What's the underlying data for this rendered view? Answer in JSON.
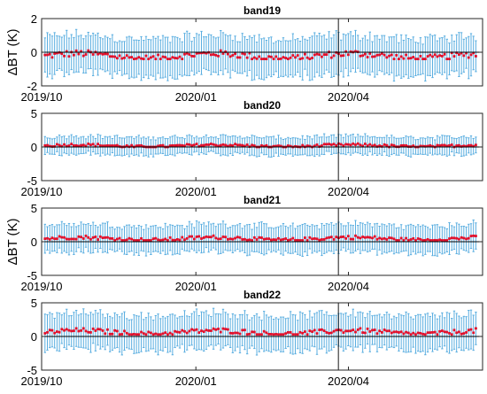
{
  "figure": {
    "ylabel": "ΔBT (K)",
    "x_tick_labels": [
      "2019/10",
      "2020/01",
      "2020/04"
    ]
  },
  "chart_data": [
    {
      "type": "scatter",
      "title": "band19",
      "x_range": [
        "2019-10-01",
        "2020-06-20"
      ],
      "ylim": [
        -2,
        2
      ],
      "yticks": [
        -2,
        0,
        2
      ],
      "xticks": [
        "2019-10-01",
        "2020-01-01",
        "2020-04-01"
      ],
      "vline": "2020-03-26",
      "grid": false,
      "legend": "none",
      "series": [
        {
          "kind": "error-bars",
          "color": "#5aaee0",
          "description_values": {
            "mean_range": [
              -0.4,
              0.1
            ],
            "bar_half_width": 1.1
          }
        },
        {
          "kind": "mean-markers",
          "color": "#e0102c",
          "values_sample": [
            -0.35,
            -0.3,
            -0.2,
            -0.1,
            0.0,
            -0.1,
            0.0,
            0.0,
            -0.1,
            0.0
          ]
        }
      ]
    },
    {
      "type": "scatter",
      "title": "band20",
      "x_range": [
        "2019-10-01",
        "2020-06-20"
      ],
      "ylim": [
        -5,
        5
      ],
      "yticks": [
        -5,
        0,
        5
      ],
      "xticks": [
        "2019-10-01",
        "2020-01-01",
        "2020-04-01"
      ],
      "vline": "2020-03-26",
      "grid": false,
      "legend": "none",
      "series": [
        {
          "kind": "error-bars",
          "color": "#5aaee0",
          "description_values": {
            "mean_range": [
              0.0,
              0.5
            ],
            "bar_half_width": 1.3
          }
        },
        {
          "kind": "mean-markers",
          "color": "#e0102c",
          "values_sample": [
            0.2,
            0.3,
            0.3,
            0.2,
            0.4,
            0.3,
            0.2,
            0.3,
            0.3,
            0.3
          ]
        }
      ]
    },
    {
      "type": "scatter",
      "title": "band21",
      "x_range": [
        "2019-10-01",
        "2020-06-20"
      ],
      "ylim": [
        -5,
        5
      ],
      "yticks": [
        -5,
        0,
        5
      ],
      "xticks": [
        "2019-10-01",
        "2020-01-01",
        "2020-04-01"
      ],
      "vline": "2020-03-26",
      "grid": false,
      "legend": "none",
      "series": [
        {
          "kind": "error-bars",
          "color": "#5aaee0",
          "description_values": {
            "mean_range": [
              0.2,
              0.9
            ],
            "bar_half_width": 2.0
          }
        },
        {
          "kind": "mean-markers",
          "color": "#e0102c",
          "values_sample": [
            0.4,
            0.5,
            0.6,
            0.5,
            0.7,
            0.5,
            0.4,
            0.5,
            0.6,
            0.5
          ]
        }
      ]
    },
    {
      "type": "scatter",
      "title": "band22",
      "x_range": [
        "2019-10-01",
        "2020-06-20"
      ],
      "ylim": [
        -5,
        5
      ],
      "yticks": [
        -5,
        0,
        5
      ],
      "xticks": [
        "2019-10-01",
        "2020-01-01",
        "2020-04-01"
      ],
      "vline": "2020-03-26",
      "grid": false,
      "legend": "none",
      "series": [
        {
          "kind": "error-bars",
          "color": "#5aaee0",
          "description_values": {
            "mean_range": [
              0.3,
              1.2
            ],
            "bar_half_width": 2.6
          }
        },
        {
          "kind": "mean-markers",
          "color": "#e0102c",
          "values_sample": [
            0.5,
            0.7,
            0.8,
            0.6,
            0.9,
            0.6,
            0.5,
            0.6,
            0.7,
            0.6
          ]
        }
      ]
    }
  ]
}
